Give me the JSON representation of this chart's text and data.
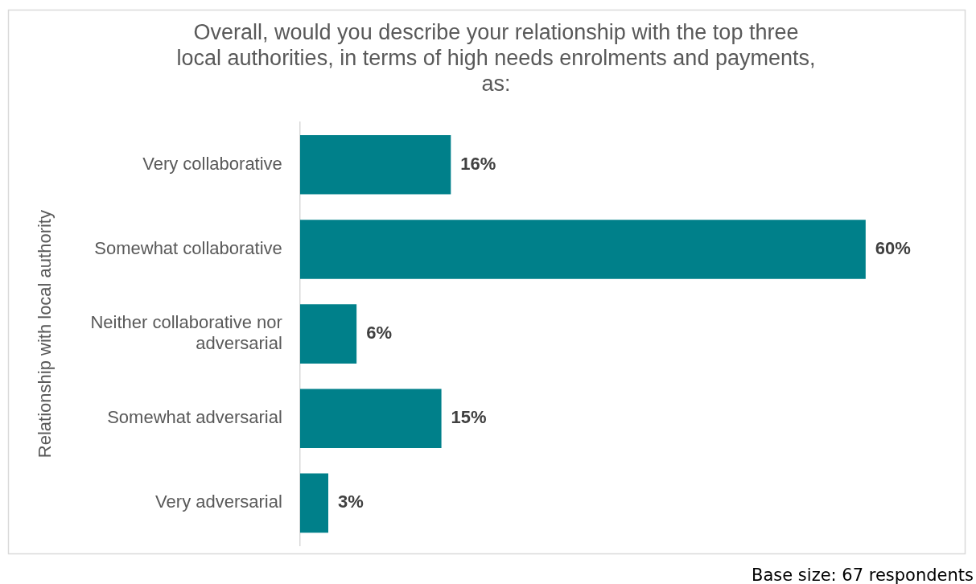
{
  "chart_data": {
    "type": "bar",
    "orientation": "horizontal",
    "title": "Overall, would you describe your relationship with the top three local authorities, in terms of high needs enrolments and payments, as:",
    "ylabel": "Relationship with local authority",
    "categories": [
      "Very collaborative",
      "Somewhat collaborative",
      "Neither collaborative nor adversarial",
      "Somewhat adversarial",
      "Very adversarial"
    ],
    "values": [
      16,
      60,
      6,
      15,
      3
    ],
    "value_labels": [
      "16%",
      "60%",
      "6%",
      "15%",
      "3%"
    ],
    "color": "#00808a",
    "annotations": [
      "Base size: 67 respondents"
    ]
  }
}
